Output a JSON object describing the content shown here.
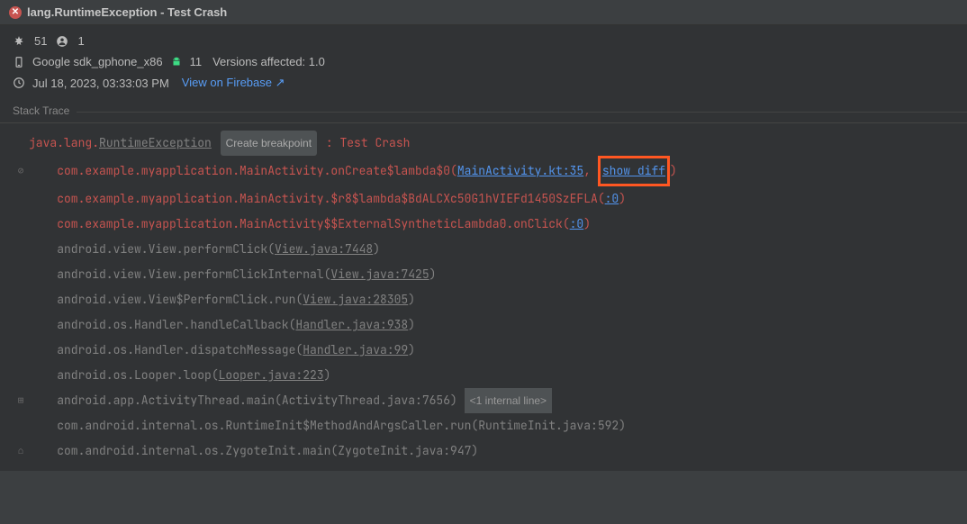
{
  "header": {
    "title": "lang.RuntimeException - Test Crash"
  },
  "stats": {
    "crash_count": "51",
    "user_count": "1"
  },
  "device": {
    "name": "Google sdk_gphone_x86",
    "api": "11",
    "versions_label": "Versions affected: 1.0"
  },
  "time": {
    "timestamp": "Jul 18, 2023, 03:33:03 PM",
    "firebase_link": "View on Firebase ↗"
  },
  "stack_trace": {
    "label": "Stack Trace",
    "exception_prefix": "java.lang.",
    "exception_type": "RuntimeException",
    "breakpoint_label": "Create breakpoint",
    "colon": " : ",
    "message": "Test Crash",
    "show_diff_label": "show diff",
    "internal_line_label": "<1 internal line>",
    "frames": [
      {
        "gutter": "⊘",
        "cls": "com.example.myapplication.MainActivity.onCreate$lambda$0",
        "file": "MainActivity.kt:35",
        "red": true,
        "show_diff": true,
        "comma": true
      },
      {
        "gutter": "",
        "cls": "com.example.myapplication.MainActivity.$r8$lambda$BdALCXc50G1hVIEFd1450SzEFLA",
        "file": ":0",
        "red": true
      },
      {
        "gutter": "",
        "cls": "com.example.myapplication.MainActivity$$ExternalSyntheticLambda0.onClick",
        "file": ":0",
        "red": true
      },
      {
        "gutter": "",
        "cls": "android.view.View.performClick",
        "file": "View.java:7448",
        "red": false
      },
      {
        "gutter": "",
        "cls": "android.view.View.performClickInternal",
        "file": "View.java:7425",
        "red": false
      },
      {
        "gutter": "",
        "cls": "android.view.View$PerformClick.run",
        "file": "View.java:28305",
        "red": false
      },
      {
        "gutter": "",
        "cls": "android.os.Handler.handleCallback",
        "file": "Handler.java:938",
        "red": false
      },
      {
        "gutter": "",
        "cls": "android.os.Handler.dispatchMessage",
        "file": "Handler.java:99",
        "red": false
      },
      {
        "gutter": "",
        "cls": "android.os.Looper.loop",
        "file": "Looper.java:223",
        "red": false
      },
      {
        "gutter": "⊞",
        "cls": "android.app.ActivityThread.main",
        "file": "ActivityThread.java:7656",
        "red": false,
        "nolink": true,
        "internal": true
      },
      {
        "gutter": "",
        "cls": "com.android.internal.os.RuntimeInit$MethodAndArgsCaller.run",
        "file": "RuntimeInit.java:592",
        "red": false,
        "nolink": true
      },
      {
        "gutter": "⌂",
        "cls": "com.android.internal.os.ZygoteInit.main",
        "file": "ZygoteInit.java:947",
        "red": false,
        "nolink": true
      }
    ]
  },
  "colors": {
    "bg": "#313335",
    "header_bg": "#3c3f41",
    "text": "#bbbbbb",
    "red": "#c75450",
    "gray": "#808080",
    "link": "#5394ec",
    "blue_link": "#589df6",
    "highlight_border": "#ff5722",
    "android_green": "#3ddc84"
  }
}
